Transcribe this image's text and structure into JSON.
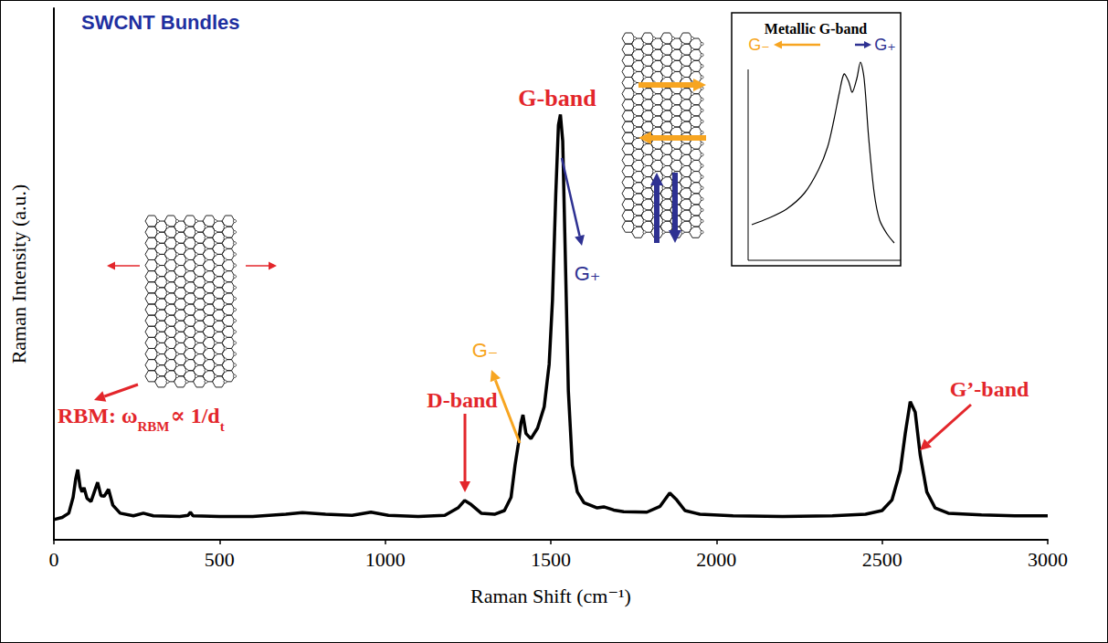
{
  "chart_data": {
    "type": "line",
    "title": "SWCNT Bundles",
    "x_label": "Raman Shift (cm⁻¹)",
    "y_label": "Raman Intensity (a.u.)",
    "color": "#000000",
    "xlim": [
      0,
      3000
    ],
    "xticks": [
      0,
      500,
      1000,
      1500,
      2000,
      2500,
      3000
    ],
    "ylim": [
      0,
      100
    ],
    "tick_labels": "x",
    "grid": false,
    "x": [
      0,
      25,
      45,
      58,
      66,
      72,
      79,
      85,
      91,
      100,
      112,
      122,
      132,
      142,
      152,
      165,
      178,
      200,
      240,
      270,
      300,
      380,
      405,
      412,
      420,
      500,
      600,
      700,
      750,
      820,
      900,
      957,
      1010,
      1100,
      1180,
      1220,
      1240,
      1260,
      1290,
      1330,
      1360,
      1380,
      1392,
      1402,
      1410,
      1416,
      1425,
      1440,
      1460,
      1480,
      1495,
      1505,
      1515,
      1523,
      1529,
      1536,
      1545,
      1553,
      1565,
      1580,
      1600,
      1640,
      1660,
      1690,
      1720,
      1790,
      1830,
      1859,
      1880,
      1905,
      1950,
      2050,
      2200,
      2350,
      2450,
      2500,
      2530,
      2555,
      2570,
      2585,
      2600,
      2615,
      2635,
      2660,
      2700,
      2800,
      2900,
      3000
    ],
    "values": [
      3.8,
      4.2,
      5,
      8,
      11.5,
      13.2,
      10,
      9,
      9.8,
      7.8,
      7.2,
      9,
      10.8,
      8.3,
      8.2,
      9.5,
      6.5,
      5,
      4.5,
      5,
      4.5,
      4.4,
      4.6,
      5.2,
      4.5,
      4.4,
      4.4,
      4.8,
      5.1,
      4.8,
      4.6,
      5.2,
      4.6,
      4.4,
      4.6,
      6,
      7.4,
      6.6,
      5,
      4.8,
      5.5,
      8,
      14,
      18,
      22,
      23.5,
      20,
      19,
      21,
      25,
      33,
      45,
      65,
      78,
      80,
      75,
      50,
      28,
      14,
      9,
      7,
      6,
      6.2,
      5.6,
      5.3,
      5.2,
      6.3,
      8.8,
      7.5,
      5.5,
      4.8,
      4.5,
      4.4,
      4.5,
      4.8,
      5.5,
      7.5,
      13,
      20,
      26,
      24,
      16,
      9,
      6,
      5,
      4.7,
      4.5,
      4.5
    ],
    "annotations": {
      "rbm": {
        "text_parts": [
          "RBM: ω",
          "RBM",
          "∝ 1/d",
          "t"
        ],
        "color": "#e3262b"
      },
      "d_band": {
        "text": "D-band",
        "color": "#e3262b"
      },
      "g_band": {
        "text": "G-band",
        "color": "#e3262b"
      },
      "g_plus": {
        "text": "G₊",
        "color": "#2e3192"
      },
      "g_minus": {
        "text": "G₋",
        "color": "#f7a521"
      },
      "g_prime": {
        "text": "G’-band",
        "color": "#e3262b"
      }
    },
    "inset": {
      "title": "Metallic G-band",
      "labels": [
        {
          "text": "G₋",
          "color": "#f7a521"
        },
        {
          "text": "G₊",
          "color": "#2e3192"
        }
      ]
    }
  }
}
